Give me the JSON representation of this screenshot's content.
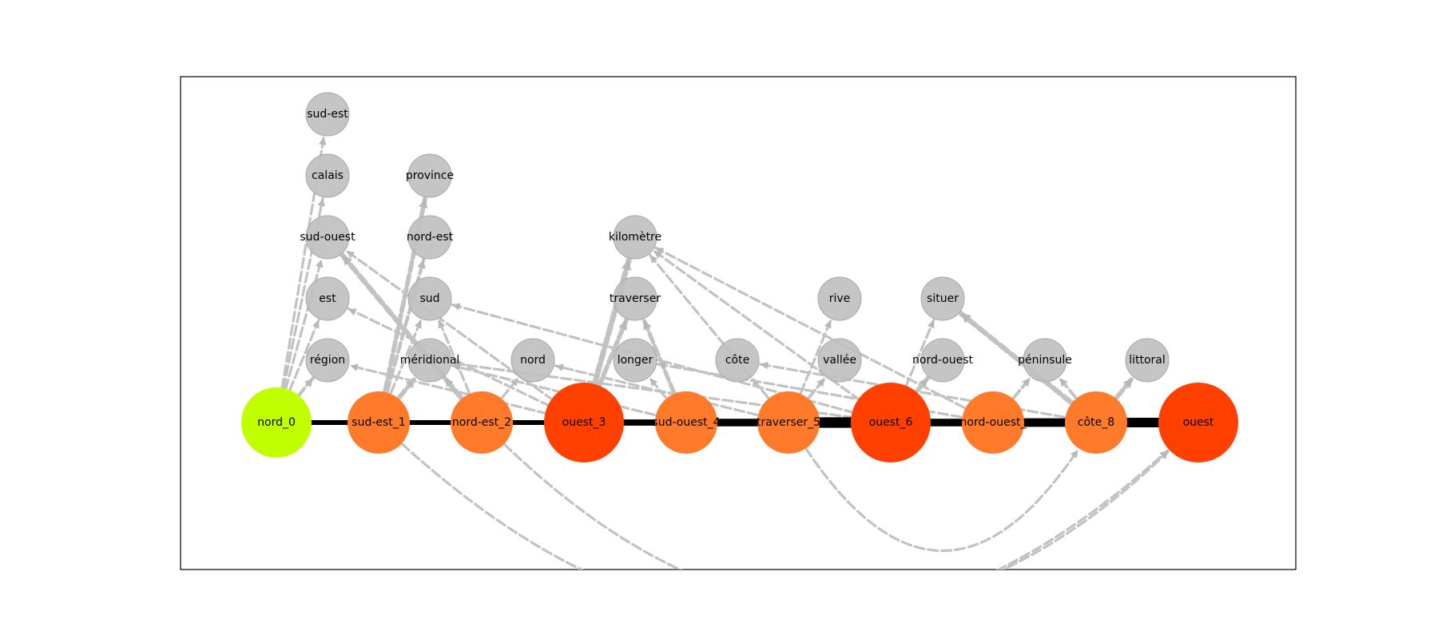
{
  "graph": {
    "colors": {
      "start": "#bfff00",
      "chain_small": "#ff7a2a",
      "chain_large": "#ff4000",
      "context": "#c0c0c0",
      "context_stroke": "#a8a8a8",
      "chain_edge": "#000000",
      "context_edge": "#c2c2c2"
    },
    "chain_nodes": [
      {
        "id": "nord_0",
        "label": "nord_0",
        "kind": "start"
      },
      {
        "id": "sud-est_1",
        "label": "sud-est_1",
        "kind": "small"
      },
      {
        "id": "nord-est_2",
        "label": "nord-est_2",
        "kind": "small"
      },
      {
        "id": "ouest_3",
        "label": "ouest_3",
        "kind": "large"
      },
      {
        "id": "sud-ouest_4",
        "label": "sud-ouest_4",
        "kind": "small"
      },
      {
        "id": "traverser_5",
        "label": "traverser_5",
        "kind": "small"
      },
      {
        "id": "ouest_6",
        "label": "ouest_6",
        "kind": "large"
      },
      {
        "id": "nord-ouest_7",
        "label": "nord-ouest_",
        "kind": "small"
      },
      {
        "id": "cote_8",
        "label": "côte_8",
        "kind": "small"
      },
      {
        "id": "ouest",
        "label": "ouest",
        "kind": "large"
      }
    ],
    "context_nodes": [
      {
        "id": "sud-est",
        "label": "sud-est"
      },
      {
        "id": "calais",
        "label": "calais"
      },
      {
        "id": "sud-ouest",
        "label": "sud-ouest"
      },
      {
        "id": "est",
        "label": "est"
      },
      {
        "id": "region",
        "label": "région"
      },
      {
        "id": "province",
        "label": "province"
      },
      {
        "id": "nord-est",
        "label": "nord-est"
      },
      {
        "id": "sud",
        "label": "sud"
      },
      {
        "id": "meridional",
        "label": "méridional"
      },
      {
        "id": "nord",
        "label": "nord"
      },
      {
        "id": "kilometre",
        "label": "kilomètre"
      },
      {
        "id": "traverser",
        "label": "traverser"
      },
      {
        "id": "longer",
        "label": "longer"
      },
      {
        "id": "cote",
        "label": "côte"
      },
      {
        "id": "rive",
        "label": "rive"
      },
      {
        "id": "vallee",
        "label": "vallée"
      },
      {
        "id": "situer",
        "label": "situer"
      },
      {
        "id": "nord-ouest",
        "label": "nord-ouest"
      },
      {
        "id": "peninsule",
        "label": "péninsule"
      },
      {
        "id": "littoral",
        "label": "littoral"
      }
    ],
    "chain_edges": [
      {
        "from": "nord_0",
        "to": "sud-est_1",
        "weight": 1
      },
      {
        "from": "sud-est_1",
        "to": "nord-est_2",
        "weight": 1
      },
      {
        "from": "nord-est_2",
        "to": "ouest_3",
        "weight": 1
      },
      {
        "from": "ouest_3",
        "to": "sud-ouest_4",
        "weight": 1.3
      },
      {
        "from": "sud-ouest_4",
        "to": "traverser_5",
        "weight": 1.6
      },
      {
        "from": "traverser_5",
        "to": "ouest_6",
        "weight": 2.2
      },
      {
        "from": "ouest_6",
        "to": "nord-ouest_7",
        "weight": 1.6
      },
      {
        "from": "nord-ouest_7",
        "to": "cote_8",
        "weight": 1.8
      },
      {
        "from": "cote_8",
        "to": "ouest",
        "weight": 2.0
      }
    ],
    "context_edges": [
      {
        "from": "nord_0",
        "to": "sud-est",
        "weight": 1
      },
      {
        "from": "nord_0",
        "to": "calais",
        "weight": 1
      },
      {
        "from": "nord_0",
        "to": "sud-ouest",
        "weight": 1
      },
      {
        "from": "nord_0",
        "to": "est",
        "weight": 1
      },
      {
        "from": "nord_0",
        "to": "region",
        "weight": 1.3
      },
      {
        "from": "sud-est_1",
        "to": "province",
        "weight": 1.8
      },
      {
        "from": "sud-est_1",
        "to": "nord-est",
        "weight": 1.4
      },
      {
        "from": "sud-est_1",
        "to": "sud",
        "weight": 1
      },
      {
        "from": "sud-est_1",
        "to": "meridional",
        "weight": 1.8
      },
      {
        "from": "nord-est_2",
        "to": "sud-ouest",
        "weight": 2.0
      },
      {
        "from": "nord-est_2",
        "to": "meridional",
        "weight": 1.4
      },
      {
        "from": "nord-est_2",
        "to": "sud",
        "weight": 1
      },
      {
        "from": "nord-est_2",
        "to": "nord",
        "weight": 1
      },
      {
        "from": "ouest_3",
        "to": "kilometre",
        "weight": 2.2
      },
      {
        "from": "ouest_3",
        "to": "traverser",
        "weight": 1.8
      },
      {
        "from": "ouest_3",
        "to": "sud-ouest",
        "weight": 1
      },
      {
        "from": "ouest_3",
        "to": "est",
        "weight": 1
      },
      {
        "from": "ouest_3",
        "to": "region",
        "weight": 1
      },
      {
        "from": "sud-ouest_4",
        "to": "traverser",
        "weight": 1.6
      },
      {
        "from": "sud-ouest_4",
        "to": "longer",
        "weight": 1
      },
      {
        "from": "sud-ouest_4",
        "to": "meridional",
        "weight": 1
      },
      {
        "from": "traverser_5",
        "to": "kilometre",
        "weight": 1
      },
      {
        "from": "traverser_5",
        "to": "rive",
        "weight": 1
      },
      {
        "from": "traverser_5",
        "to": "cote",
        "weight": 1
      },
      {
        "from": "traverser_5",
        "to": "vallee",
        "weight": 1.2
      },
      {
        "from": "traverser_5",
        "to": "nord",
        "weight": 1
      },
      {
        "from": "ouest_6",
        "to": "situer",
        "weight": 1
      },
      {
        "from": "ouest_6",
        "to": "nord-ouest",
        "weight": 1.7
      },
      {
        "from": "ouest_6",
        "to": "kilometre",
        "weight": 1
      },
      {
        "from": "ouest_6",
        "to": "sud",
        "weight": 1
      },
      {
        "from": "ouest_6",
        "to": "meridional",
        "weight": 1
      },
      {
        "from": "nord-ouest_7",
        "to": "peninsule",
        "weight": 1.2
      },
      {
        "from": "nord-ouest_7",
        "to": "kilometre",
        "weight": 1
      },
      {
        "from": "nord-ouest_7",
        "to": "longer",
        "weight": 1
      },
      {
        "from": "cote_8",
        "to": "situer",
        "weight": 2.0
      },
      {
        "from": "cote_8",
        "to": "littoral",
        "weight": 1.8
      },
      {
        "from": "cote_8",
        "to": "cote",
        "weight": 1
      },
      {
        "from": "cote_8",
        "to": "peninsule",
        "weight": 1.2
      },
      {
        "from": "sud-est_1",
        "to": "ouest",
        "weight": 1
      },
      {
        "from": "nord-est_2",
        "to": "ouest",
        "weight": 1
      },
      {
        "from": "traverser_5",
        "to": "cote_8",
        "weight": 1
      }
    ]
  }
}
